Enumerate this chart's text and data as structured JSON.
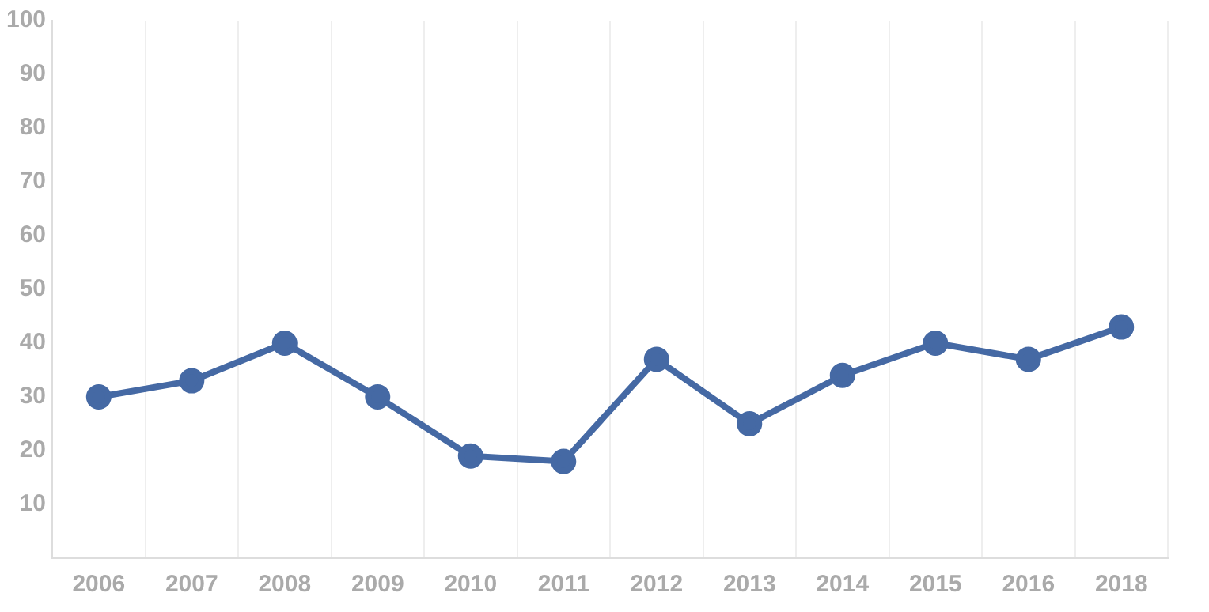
{
  "chart_data": {
    "type": "line",
    "categories": [
      "2006",
      "2007",
      "2008",
      "2009",
      "2010",
      "2011",
      "2012",
      "2013",
      "2014",
      "2015",
      "2016",
      "2018"
    ],
    "series": [
      {
        "color": "#4569a4",
        "values": [
          30,
          33,
          40,
          30,
          19,
          18,
          37,
          25,
          34,
          40,
          37,
          43
        ]
      }
    ],
    "ylim": [
      0,
      100
    ],
    "yticks": [
      10,
      20,
      30,
      40,
      50,
      60,
      70,
      80,
      90,
      100
    ],
    "grid": "x",
    "marker": "circle",
    "line_style": "solid",
    "legend": false
  }
}
